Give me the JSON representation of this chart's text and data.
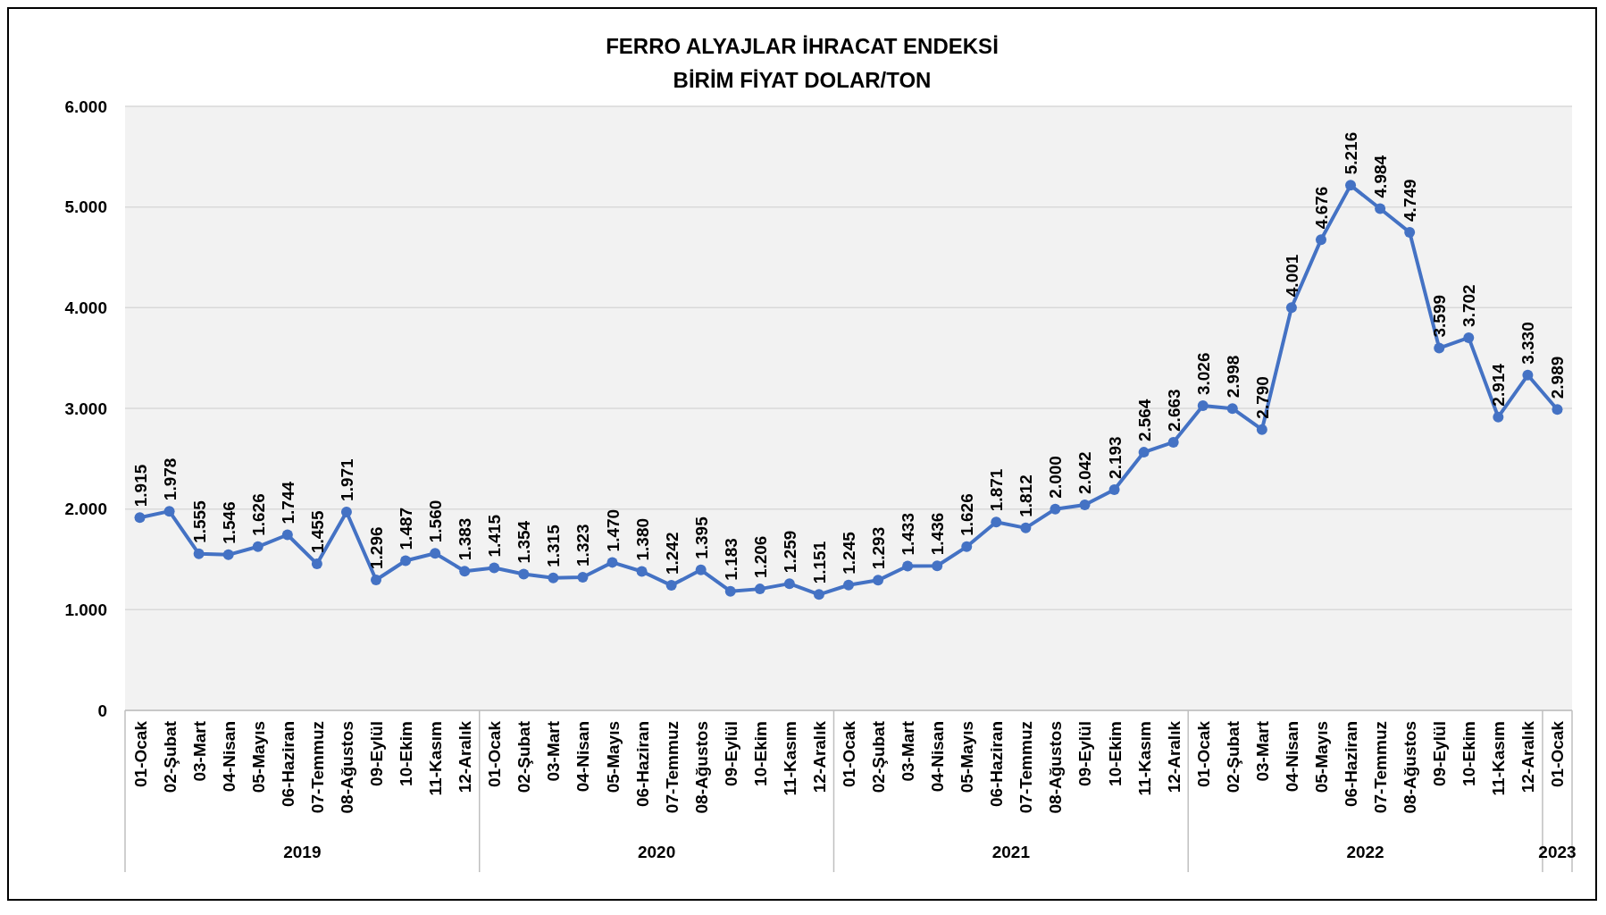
{
  "chart_data": {
    "type": "line",
    "title": "FERRO ALYAJLAR İHRACAT ENDEKSİ",
    "subtitle": "BİRİM FİYAT DOLAR/TON",
    "categories": [
      "01-Ocak",
      "02-Şubat",
      "03-Mart",
      "04-Nisan",
      "05-Mayıs",
      "06-Haziran",
      "07-Temmuz",
      "08-Ağustos",
      "09-Eylül",
      "10-Ekim",
      "11-Kasım",
      "12-Aralık",
      "01-Ocak",
      "02-Şubat",
      "03-Mart",
      "04-Nisan",
      "05-Mayıs",
      "06-Haziran",
      "07-Temmuz",
      "08-Ağustos",
      "09-Eylül",
      "10-Ekim",
      "11-Kasım",
      "12-Aralık",
      "01-Ocak",
      "02-Şubat",
      "03-Mart",
      "04-Nisan",
      "05-Mayıs",
      "06-Haziran",
      "07-Temmuz",
      "08-Ağustos",
      "09-Eylül",
      "10-Ekim",
      "11-Kasım",
      "12-Aralık",
      "01-Ocak",
      "02-Şubat",
      "03-Mart",
      "04-Nisan",
      "05-Mayıs",
      "06-Haziran",
      "07-Temmuz",
      "08-Ağustos",
      "09-Eylül",
      "10-Ekim",
      "11-Kasım",
      "12-Aralık",
      "01-Ocak"
    ],
    "series": [
      {
        "color": "#4472c4",
        "values": [
          1915,
          1978,
          1555,
          1546,
          1626,
          1744,
          1455,
          1971,
          1296,
          1487,
          1560,
          1383,
          1415,
          1354,
          1315,
          1323,
          1470,
          1380,
          1242,
          1395,
          1183,
          1206,
          1259,
          1151,
          1245,
          1293,
          1433,
          1436,
          1626,
          1871,
          1812,
          2000,
          2042,
          2193,
          2564,
          2663,
          3026,
          2998,
          2790,
          4001,
          4676,
          5216,
          4984,
          4749,
          3599,
          3702,
          2914,
          3330,
          2989
        ],
        "value_labels": [
          "1.915",
          "1.978",
          "1.555",
          "1.546",
          "1.626",
          "1.744",
          "1.455",
          "1.971",
          "1.296",
          "1.487",
          "1.560",
          "1.383",
          "1.415",
          "1.354",
          "1.315",
          "1.323",
          "1.470",
          "1.380",
          "1.242",
          "1.395",
          "1.183",
          "1.206",
          "1.259",
          "1.151",
          "1.245",
          "1.293",
          "1.433",
          "1.436",
          "1.626",
          "1.871",
          "1.812",
          "2.000",
          "2.042",
          "2.193",
          "2.564",
          "2.663",
          "3.026",
          "2.998",
          "2.790",
          "4.001",
          "4.676",
          "5.216",
          "4.984",
          "4.749",
          "3.599",
          "3.702",
          "2.914",
          "3.330",
          "2.989"
        ]
      }
    ],
    "annotations": [
      "2019",
      "2020",
      "2021",
      "2022",
      "2023"
    ],
    "ylim": [
      0,
      6000
    ],
    "yticks": [
      0,
      {
        "value": 1000,
        "label": "1.000"
      },
      {
        "value": 2000,
        "label": "2.000"
      },
      {
        "value": 3000,
        "label": "3.000"
      },
      {
        "value": 4000,
        "label": "4.000"
      },
      {
        "value": 5000,
        "label": "5.000"
      },
      {
        "value": 6000,
        "label": "6.000"
      }
    ],
    "grid": "y",
    "marker": "circle",
    "line_style": "solid"
  }
}
